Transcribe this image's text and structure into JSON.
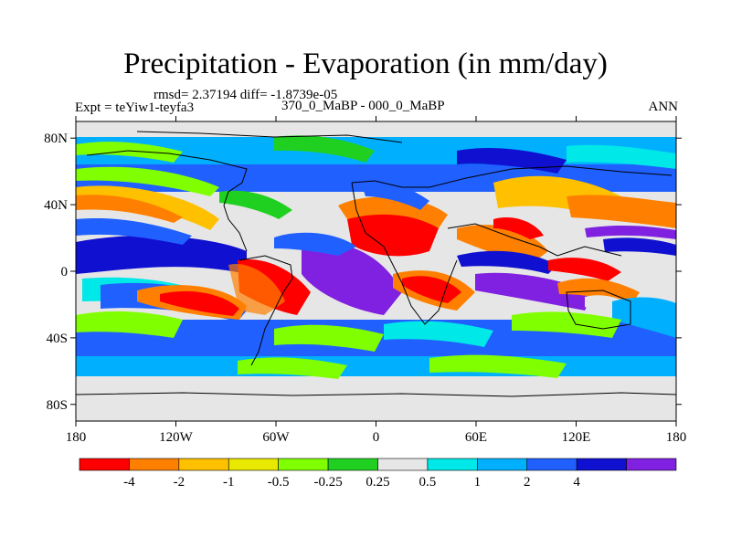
{
  "title": "Precipitation - Evaporation (in mm/day)",
  "stats": "rmsd= 2.37194  diff= -1.8739e-05",
  "experiment": "Expt = teYiw1-teyfa3",
  "comparison": "370_0_MaBP - 000_0_MaBP",
  "period": "ANN",
  "axes": {
    "y_ticks": [
      "80N",
      "40N",
      "0",
      "40S",
      "80S"
    ],
    "y_values": [
      80,
      40,
      0,
      -40,
      -80
    ],
    "x_ticks": [
      "180",
      "120W",
      "60W",
      "0",
      "60E",
      "120E",
      "180"
    ],
    "x_values": [
      -180,
      -120,
      -60,
      0,
      60,
      120,
      180
    ]
  },
  "colorbar": {
    "colors": [
      "#ff0000",
      "#ff8000",
      "#ffc000",
      "#e8e800",
      "#80ff00",
      "#20d020",
      "#e6e6e6",
      "#00e8e8",
      "#00b0ff",
      "#2060ff",
      "#1010d0",
      "#8020e0"
    ],
    "labels": [
      "-4",
      "-2",
      "-1",
      "-0.5",
      "-0.25",
      "0.25",
      "0.5",
      "1",
      "2",
      "4"
    ]
  }
}
